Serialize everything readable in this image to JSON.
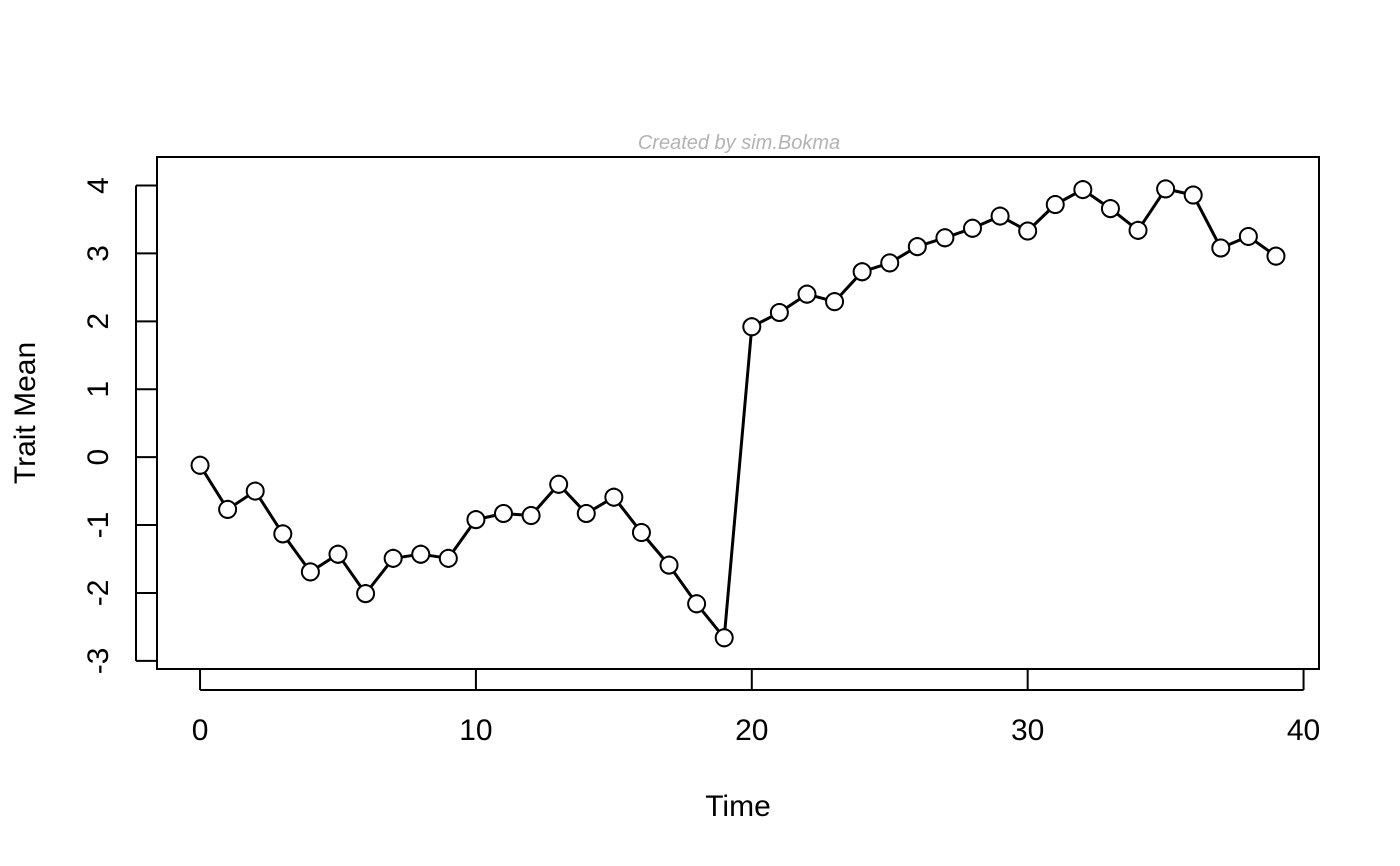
{
  "chart_data": {
    "type": "line",
    "title": "",
    "watermark": "Created by sim.Bokma",
    "xlabel": "Time",
    "ylabel": "Trait Mean",
    "xlim": [
      -1.56,
      40.56
    ],
    "ylim": [
      -3.12,
      4.42
    ],
    "xticks": [
      0,
      10,
      20,
      30,
      40
    ],
    "yticks": [
      -3,
      -2,
      -1,
      0,
      1,
      2,
      3,
      4
    ],
    "grid": false,
    "marker": "open-circle",
    "error_bars": "vertical",
    "series": [
      {
        "x": [
          0,
          1,
          2,
          3,
          4,
          5,
          6,
          7,
          8,
          9,
          10,
          11,
          12,
          13,
          14,
          15,
          16,
          17,
          18,
          19,
          20,
          21,
          22,
          23,
          24,
          25,
          26,
          27,
          28,
          29,
          30,
          31,
          32,
          33,
          34,
          35,
          36,
          37,
          38,
          39
        ],
        "y": [
          -0.12,
          -0.77,
          -0.5,
          -1.13,
          -1.69,
          -1.43,
          -2.01,
          -1.49,
          -1.43,
          -1.49,
          -0.92,
          -0.83,
          -0.86,
          -0.4,
          -0.83,
          -0.59,
          -1.11,
          -1.59,
          -2.16,
          -2.66,
          1.92,
          2.13,
          2.4,
          2.29,
          2.73,
          2.86,
          3.1,
          3.23,
          3.37,
          3.55,
          3.33,
          3.72,
          3.94,
          3.66,
          3.34,
          3.95,
          3.86,
          3.08,
          3.25,
          2.96
        ],
        "error": [
          0.14,
          0.14,
          0.14,
          0.14,
          0.14,
          0.14,
          0.14,
          0.14,
          0.14,
          0.14,
          0.14,
          0.14,
          0.14,
          0.14,
          0.14,
          0.14,
          0.14,
          0.14,
          0.14,
          0.14,
          0.14,
          0.14,
          0.14,
          0.14,
          0.14,
          0.14,
          0.14,
          0.14,
          0.14,
          0.14,
          0.14,
          0.14,
          0.14,
          0.14,
          0.14,
          0.14,
          0.14,
          0.14,
          0.14,
          0.14
        ],
        "color": "#000000",
        "marker_fill": "#ffffff"
      }
    ]
  }
}
